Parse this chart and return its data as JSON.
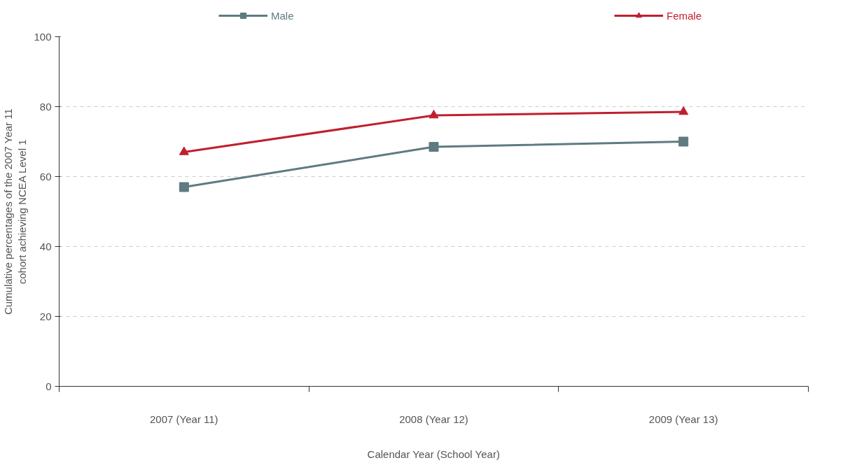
{
  "chart_data": {
    "type": "line",
    "xlabel": "Calendar Year (School Year)",
    "ylabel": "Cumulative percentages of the 2007 Year 11 cohort achieving NCEA Level 1",
    "categories": [
      "2007 (Year 11)",
      "2008 (Year 12)",
      "2009 (Year 13)"
    ],
    "series": [
      {
        "name": "Male",
        "color": "#5e7b80",
        "marker": "square",
        "values": [
          57.0,
          68.5,
          70.0
        ]
      },
      {
        "name": "Female",
        "color": "#c01f2f",
        "marker": "triangle",
        "values": [
          67.0,
          77.5,
          78.5
        ]
      }
    ],
    "ylim": [
      0,
      100
    ],
    "yticks": [
      0,
      20,
      40,
      60,
      80,
      100
    ],
    "grid": "y",
    "legend": "top",
    "line_style": "solid"
  }
}
